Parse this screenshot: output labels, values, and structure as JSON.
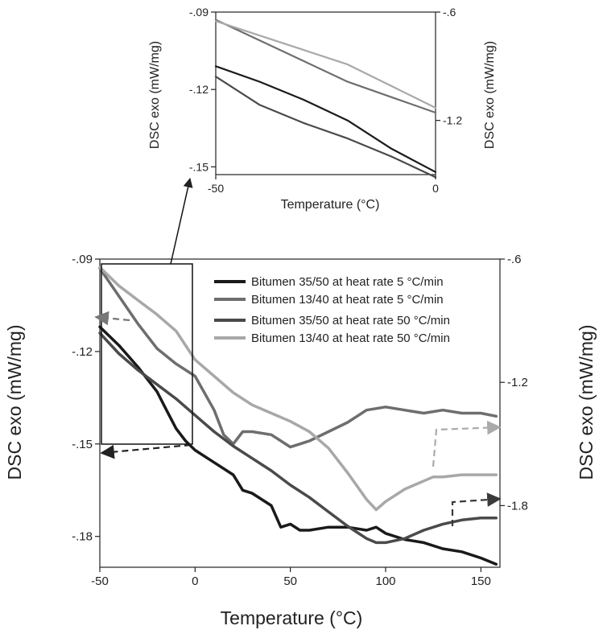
{
  "chart_data": [
    {
      "id": "main",
      "type": "line",
      "xlabel": "Temperature (°C)",
      "ylabel": "DSC exo (mW/mg)",
      "y2label": "DSC exo (mW/mg)",
      "xlim": [
        -50,
        160
      ],
      "ylim": [
        -0.19,
        -0.09
      ],
      "y2lim": [
        -2.1,
        -0.6
      ],
      "xticks": [
        -50,
        0,
        50,
        100,
        150
      ],
      "yticks": [
        -0.09,
        -0.12,
        -0.15,
        -0.18
      ],
      "y2ticks": [
        -0.6,
        -1.2,
        -1.8
      ],
      "legend_position": "top-right",
      "grid": false,
      "series": [
        {
          "name": "Bitumen 35/50 at heat rate 5 °C/min",
          "axis": "left",
          "color": "#1a1a1a",
          "x": [
            -50,
            -40,
            -30,
            -20,
            -15,
            -10,
            -5,
            0,
            10,
            20,
            25,
            30,
            40,
            45,
            50,
            55,
            60,
            70,
            80,
            90,
            95,
            100,
            110,
            120,
            130,
            140,
            150,
            158
          ],
          "y": [
            -0.112,
            -0.118,
            -0.125,
            -0.133,
            -0.139,
            -0.145,
            -0.149,
            -0.152,
            -0.156,
            -0.16,
            -0.165,
            -0.166,
            -0.17,
            -0.177,
            -0.176,
            -0.178,
            -0.178,
            -0.177,
            -0.177,
            -0.178,
            -0.177,
            -0.179,
            -0.181,
            -0.182,
            -0.184,
            -0.185,
            -0.187,
            -0.189
          ]
        },
        {
          "name": "Bitumen 13/40 at heat rate 5 °C/min",
          "axis": "left",
          "color": "#6e6e6e",
          "x": [
            -50,
            -40,
            -30,
            -20,
            -10,
            0,
            10,
            15,
            20,
            25,
            30,
            40,
            50,
            55,
            60,
            70,
            80,
            90,
            100,
            110,
            120,
            130,
            140,
            150,
            158
          ],
          "y": [
            -0.093,
            -0.102,
            -0.111,
            -0.119,
            -0.124,
            -0.128,
            -0.139,
            -0.147,
            -0.15,
            -0.146,
            -0.146,
            -0.147,
            -0.151,
            -0.15,
            -0.149,
            -0.146,
            -0.143,
            -0.139,
            -0.138,
            -0.139,
            -0.14,
            -0.139,
            -0.14,
            -0.14,
            -0.141
          ]
        },
        {
          "name": "Bitumen 35/50 at heat rate 50 °C/min",
          "axis": "right",
          "color": "#4a4a4a",
          "x": [
            -50,
            -40,
            -30,
            -20,
            -10,
            0,
            10,
            20,
            30,
            40,
            50,
            60,
            70,
            80,
            90,
            95,
            100,
            110,
            120,
            130,
            140,
            150,
            158
          ],
          "y": [
            -0.96,
            -1.06,
            -1.14,
            -1.21,
            -1.28,
            -1.36,
            -1.44,
            -1.51,
            -1.57,
            -1.63,
            -1.7,
            -1.76,
            -1.83,
            -1.9,
            -1.96,
            -1.98,
            -1.98,
            -1.96,
            -1.92,
            -1.89,
            -1.87,
            -1.86,
            -1.86
          ]
        },
        {
          "name": "Bitumen 13/40 at heat rate 50 °C/min",
          "axis": "right",
          "color": "#a8a8a8",
          "x": [
            -50,
            -40,
            -30,
            -20,
            -10,
            0,
            10,
            20,
            30,
            40,
            50,
            60,
            70,
            80,
            90,
            95,
            100,
            110,
            120,
            125,
            130,
            140,
            150,
            158
          ],
          "y": [
            -0.64,
            -0.73,
            -0.8,
            -0.87,
            -0.95,
            -1.09,
            -1.17,
            -1.25,
            -1.31,
            -1.35,
            -1.39,
            -1.44,
            -1.52,
            -1.64,
            -1.77,
            -1.82,
            -1.78,
            -1.72,
            -1.68,
            -1.66,
            -1.66,
            -1.65,
            -1.65,
            -1.65
          ]
        }
      ]
    },
    {
      "id": "inset",
      "type": "line",
      "xlabel": "Temperature (°C)",
      "ylabel": "DSC exo (mW/mg)",
      "y2label": "DSC exo (mW/mg)",
      "xlim": [
        -50,
        0
      ],
      "ylim": [
        -0.153,
        -0.09
      ],
      "y2lim": [
        -1.5,
        -0.6
      ],
      "xticks": [
        -50,
        0
      ],
      "yticks": [
        -0.09,
        -0.12,
        -0.15
      ],
      "y2ticks": [
        -0.6,
        -1.2
      ],
      "grid": false,
      "series": [
        {
          "axis": "left",
          "color": "#1a1a1a",
          "x": [
            -50,
            -40,
            -30,
            -20,
            -10,
            0
          ],
          "y": [
            -0.111,
            -0.117,
            -0.124,
            -0.132,
            -0.143,
            -0.152
          ]
        },
        {
          "axis": "left",
          "color": "#6e6e6e",
          "x": [
            -50,
            -40,
            -30,
            -20,
            -10,
            0
          ],
          "y": [
            -0.093,
            -0.101,
            -0.109,
            -0.117,
            -0.123,
            -0.129
          ]
        },
        {
          "axis": "left",
          "color": "#4a4a4a",
          "x": [
            -50,
            -40,
            -30,
            -20,
            -10,
            0
          ],
          "y": [
            -0.115,
            -0.126,
            -0.133,
            -0.139,
            -0.146,
            -0.154
          ]
        },
        {
          "axis": "right",
          "color": "#a8a8a8",
          "x": [
            -50,
            -40,
            -30,
            -20,
            -10,
            0
          ],
          "y": [
            -0.65,
            -0.73,
            -0.81,
            -0.89,
            -1.01,
            -1.13
          ]
        }
      ]
    }
  ]
}
